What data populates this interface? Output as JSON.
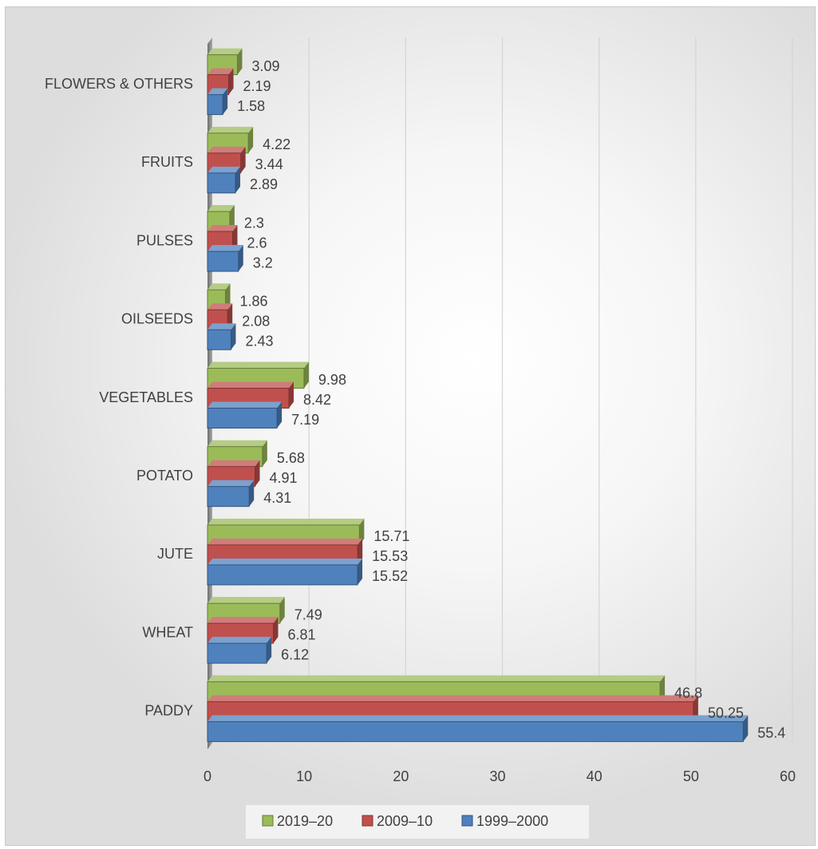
{
  "chart_data": {
    "type": "bar",
    "orientation": "horizontal",
    "style": "3d-clustered-bar",
    "categories": [
      "PADDY",
      "WHEAT",
      "JUTE",
      "POTATO",
      "VEGETABLES",
      "OILSEEDS",
      "PULSES",
      "FRUITS",
      "FLOWERS & OTHERS"
    ],
    "series": [
      {
        "name": "2019–20",
        "color": "#9bbb59",
        "values": [
          46.8,
          7.49,
          15.71,
          5.68,
          9.98,
          1.86,
          2.3,
          4.22,
          3.09
        ]
      },
      {
        "name": "2009–10",
        "color": "#c0504d",
        "values": [
          50.25,
          6.81,
          15.53,
          4.91,
          8.42,
          2.08,
          2.6,
          3.44,
          2.19
        ]
      },
      {
        "name": "1999–2000",
        "color": "#4f81bd",
        "values": [
          55.4,
          6.12,
          15.52,
          4.31,
          7.19,
          2.43,
          3.2,
          2.89,
          1.58
        ]
      }
    ],
    "x_ticks": [
      "0",
      "10",
      "20",
      "30",
      "40",
      "50",
      "60"
    ],
    "xlim": [
      0,
      60
    ],
    "title": "",
    "xlabel": "",
    "ylabel": "",
    "grid": "vertical",
    "legend_position": "bottom"
  }
}
